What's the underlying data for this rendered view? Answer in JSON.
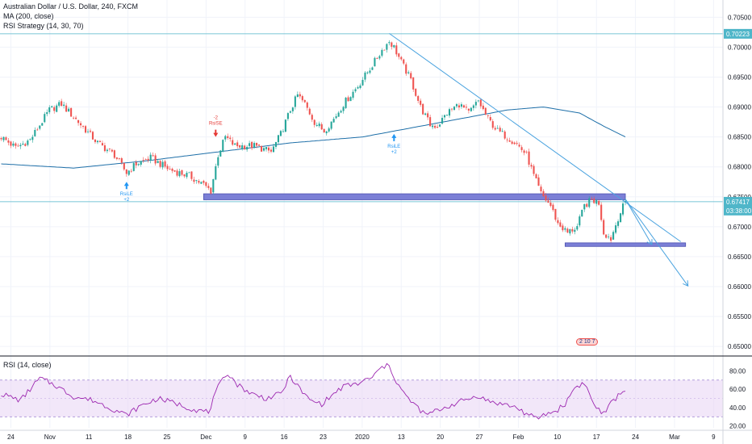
{
  "header": {
    "title": "Australian Dollar / U.S. Dollar, 240, FXCM",
    "ma_label": "MA (200, close)",
    "strategy_label": "RSI Strategy (14, 30, 70)",
    "rsi_label": "RSI (14, close)"
  },
  "colors": {
    "up": "#26a69a",
    "down": "#ef5350",
    "ma": "#1e6fa8",
    "trendline": "#4aa3df",
    "zone_fill": "#7b7fd6",
    "rsi_line": "#9c27b0",
    "rsi_band": "#e9d7f5",
    "price_tag": "#4fb6c9",
    "signal_buy": "#2196f3",
    "signal_sell": "#e53935"
  },
  "chart_data": [
    {
      "type": "candlestick",
      "title": "Australian Dollar / U.S. Dollar, 240, FXCM",
      "y_ticks": [
        "0.70500",
        "0.70000",
        "0.69500",
        "0.69000",
        "0.68500",
        "0.68000",
        "0.67500",
        "0.67000",
        "0.66500",
        "0.66000",
        "0.65500",
        "0.65000"
      ],
      "ylim": [
        0.6488,
        0.7068
      ],
      "x_ticks": [
        "24",
        "Nov",
        "11",
        "18",
        "25",
        "Dec",
        "9",
        "16",
        "23",
        "2020",
        "13",
        "20",
        "27",
        "Feb",
        "10",
        "17",
        "24",
        "Mar",
        "9"
      ],
      "price_labels": [
        {
          "text": "0.70223",
          "value": 0.70223
        },
        {
          "text": "0.67417",
          "value": 0.67417
        },
        {
          "text": "03:38:00",
          "value": 0.6727
        }
      ],
      "horizontal_levels": [
        0.70223,
        0.67417
      ],
      "zones": [
        {
          "from": 0.6745,
          "to": 0.6755
        },
        {
          "from": 0.6667,
          "to": 0.6673
        }
      ],
      "signals": [
        {
          "label": "RsiLE",
          "count": "+2",
          "direction": "buy"
        },
        {
          "label": "RsiSE",
          "count": "-2",
          "direction": "sell"
        },
        {
          "label": "RsiLE",
          "count": "+2",
          "direction": "buy"
        }
      ],
      "keyframes": [
        [
          0,
          0.685
        ],
        [
          6,
          0.6832
        ],
        [
          12,
          0.6845
        ],
        [
          20,
          0.6895
        ],
        [
          25,
          0.6905
        ],
        [
          32,
          0.6875
        ],
        [
          40,
          0.684
        ],
        [
          47,
          0.682
        ],
        [
          52,
          0.679
        ],
        [
          56,
          0.6805
        ],
        [
          62,
          0.6815
        ],
        [
          70,
          0.6795
        ],
        [
          78,
          0.6785
        ],
        [
          84,
          0.677
        ],
        [
          87,
          0.676
        ],
        [
          90,
          0.682
        ],
        [
          93,
          0.685
        ],
        [
          97,
          0.6835
        ],
        [
          105,
          0.6835
        ],
        [
          112,
          0.6825
        ],
        [
          116,
          0.6855
        ],
        [
          120,
          0.6895
        ],
        [
          123,
          0.692
        ],
        [
          126,
          0.6905
        ],
        [
          130,
          0.6875
        ],
        [
          134,
          0.686
        ],
        [
          138,
          0.688
        ],
        [
          142,
          0.6905
        ],
        [
          148,
          0.6935
        ],
        [
          154,
          0.697
        ],
        [
          158,
          0.6995
        ],
        [
          161,
          0.701
        ],
        [
          163,
          0.7
        ],
        [
          166,
          0.6975
        ],
        [
          170,
          0.6945
        ],
        [
          174,
          0.69
        ],
        [
          178,
          0.687
        ],
        [
          181,
          0.6868
        ],
        [
          185,
          0.689
        ],
        [
          190,
          0.6905
        ],
        [
          194,
          0.689
        ],
        [
          198,
          0.691
        ],
        [
          202,
          0.688
        ],
        [
          206,
          0.686
        ],
        [
          210,
          0.685
        ],
        [
          214,
          0.6838
        ],
        [
          218,
          0.682
        ],
        [
          221,
          0.6785
        ],
        [
          224,
          0.6755
        ],
        [
          228,
          0.6735
        ],
        [
          231,
          0.6705
        ],
        [
          235,
          0.669
        ],
        [
          239,
          0.67
        ],
        [
          242,
          0.6735
        ],
        [
          245,
          0.6745
        ],
        [
          248,
          0.674
        ],
        [
          250,
          0.669
        ],
        [
          253,
          0.668
        ],
        [
          256,
          0.6715
        ],
        [
          259,
          0.6742
        ]
      ],
      "ma": [
        [
          0,
          0.6805
        ],
        [
          30,
          0.6798
        ],
        [
          60,
          0.681
        ],
        [
          90,
          0.6825
        ],
        [
          120,
          0.684
        ],
        [
          150,
          0.685
        ],
        [
          170,
          0.6865
        ],
        [
          190,
          0.688
        ],
        [
          210,
          0.6895
        ],
        [
          225,
          0.69
        ],
        [
          240,
          0.689
        ],
        [
          250,
          0.6868
        ],
        [
          259,
          0.685
        ]
      ],
      "trendlines": [
        {
          "from": [
            161,
            0.7023
          ],
          "to": [
            282,
            0.6675
          ]
        },
        {
          "from": [
            259,
            0.6746
          ],
          "to": [
            270,
            0.667
          ]
        },
        {
          "from": [
            259,
            0.6746
          ],
          "to": [
            285,
            0.6601
          ]
        }
      ]
    },
    {
      "type": "line",
      "title": "RSI (14, close)",
      "y_ticks": [
        "80.00",
        "60.00",
        "40.00",
        "20.00"
      ],
      "ylim": [
        18,
        90
      ],
      "bands": [
        30,
        70
      ],
      "keyframes": [
        [
          0,
          55
        ],
        [
          8,
          48
        ],
        [
          16,
          72
        ],
        [
          22,
          65
        ],
        [
          30,
          52
        ],
        [
          38,
          48
        ],
        [
          45,
          40
        ],
        [
          52,
          32
        ],
        [
          58,
          42
        ],
        [
          65,
          50
        ],
        [
          72,
          45
        ],
        [
          80,
          38
        ],
        [
          86,
          35
        ],
        [
          90,
          62
        ],
        [
          94,
          78
        ],
        [
          98,
          65
        ],
        [
          104,
          55
        ],
        [
          110,
          50
        ],
        [
          116,
          55
        ],
        [
          120,
          74
        ],
        [
          124,
          60
        ],
        [
          128,
          48
        ],
        [
          133,
          44
        ],
        [
          138,
          55
        ],
        [
          142,
          63
        ],
        [
          148,
          66
        ],
        [
          154,
          73
        ],
        [
          158,
          84
        ],
        [
          161,
          86
        ],
        [
          164,
          68
        ],
        [
          168,
          52
        ],
        [
          172,
          42
        ],
        [
          176,
          32
        ],
        [
          180,
          36
        ],
        [
          186,
          42
        ],
        [
          192,
          48
        ],
        [
          198,
          53
        ],
        [
          202,
          47
        ],
        [
          208,
          44
        ],
        [
          214,
          40
        ],
        [
          218,
          33
        ],
        [
          222,
          28
        ],
        [
          226,
          33
        ],
        [
          230,
          36
        ],
        [
          234,
          44
        ],
        [
          238,
          62
        ],
        [
          242,
          67
        ],
        [
          246,
          43
        ],
        [
          250,
          33
        ],
        [
          254,
          48
        ],
        [
          259,
          60
        ]
      ]
    }
  ],
  "signal_text": "2 10 7"
}
